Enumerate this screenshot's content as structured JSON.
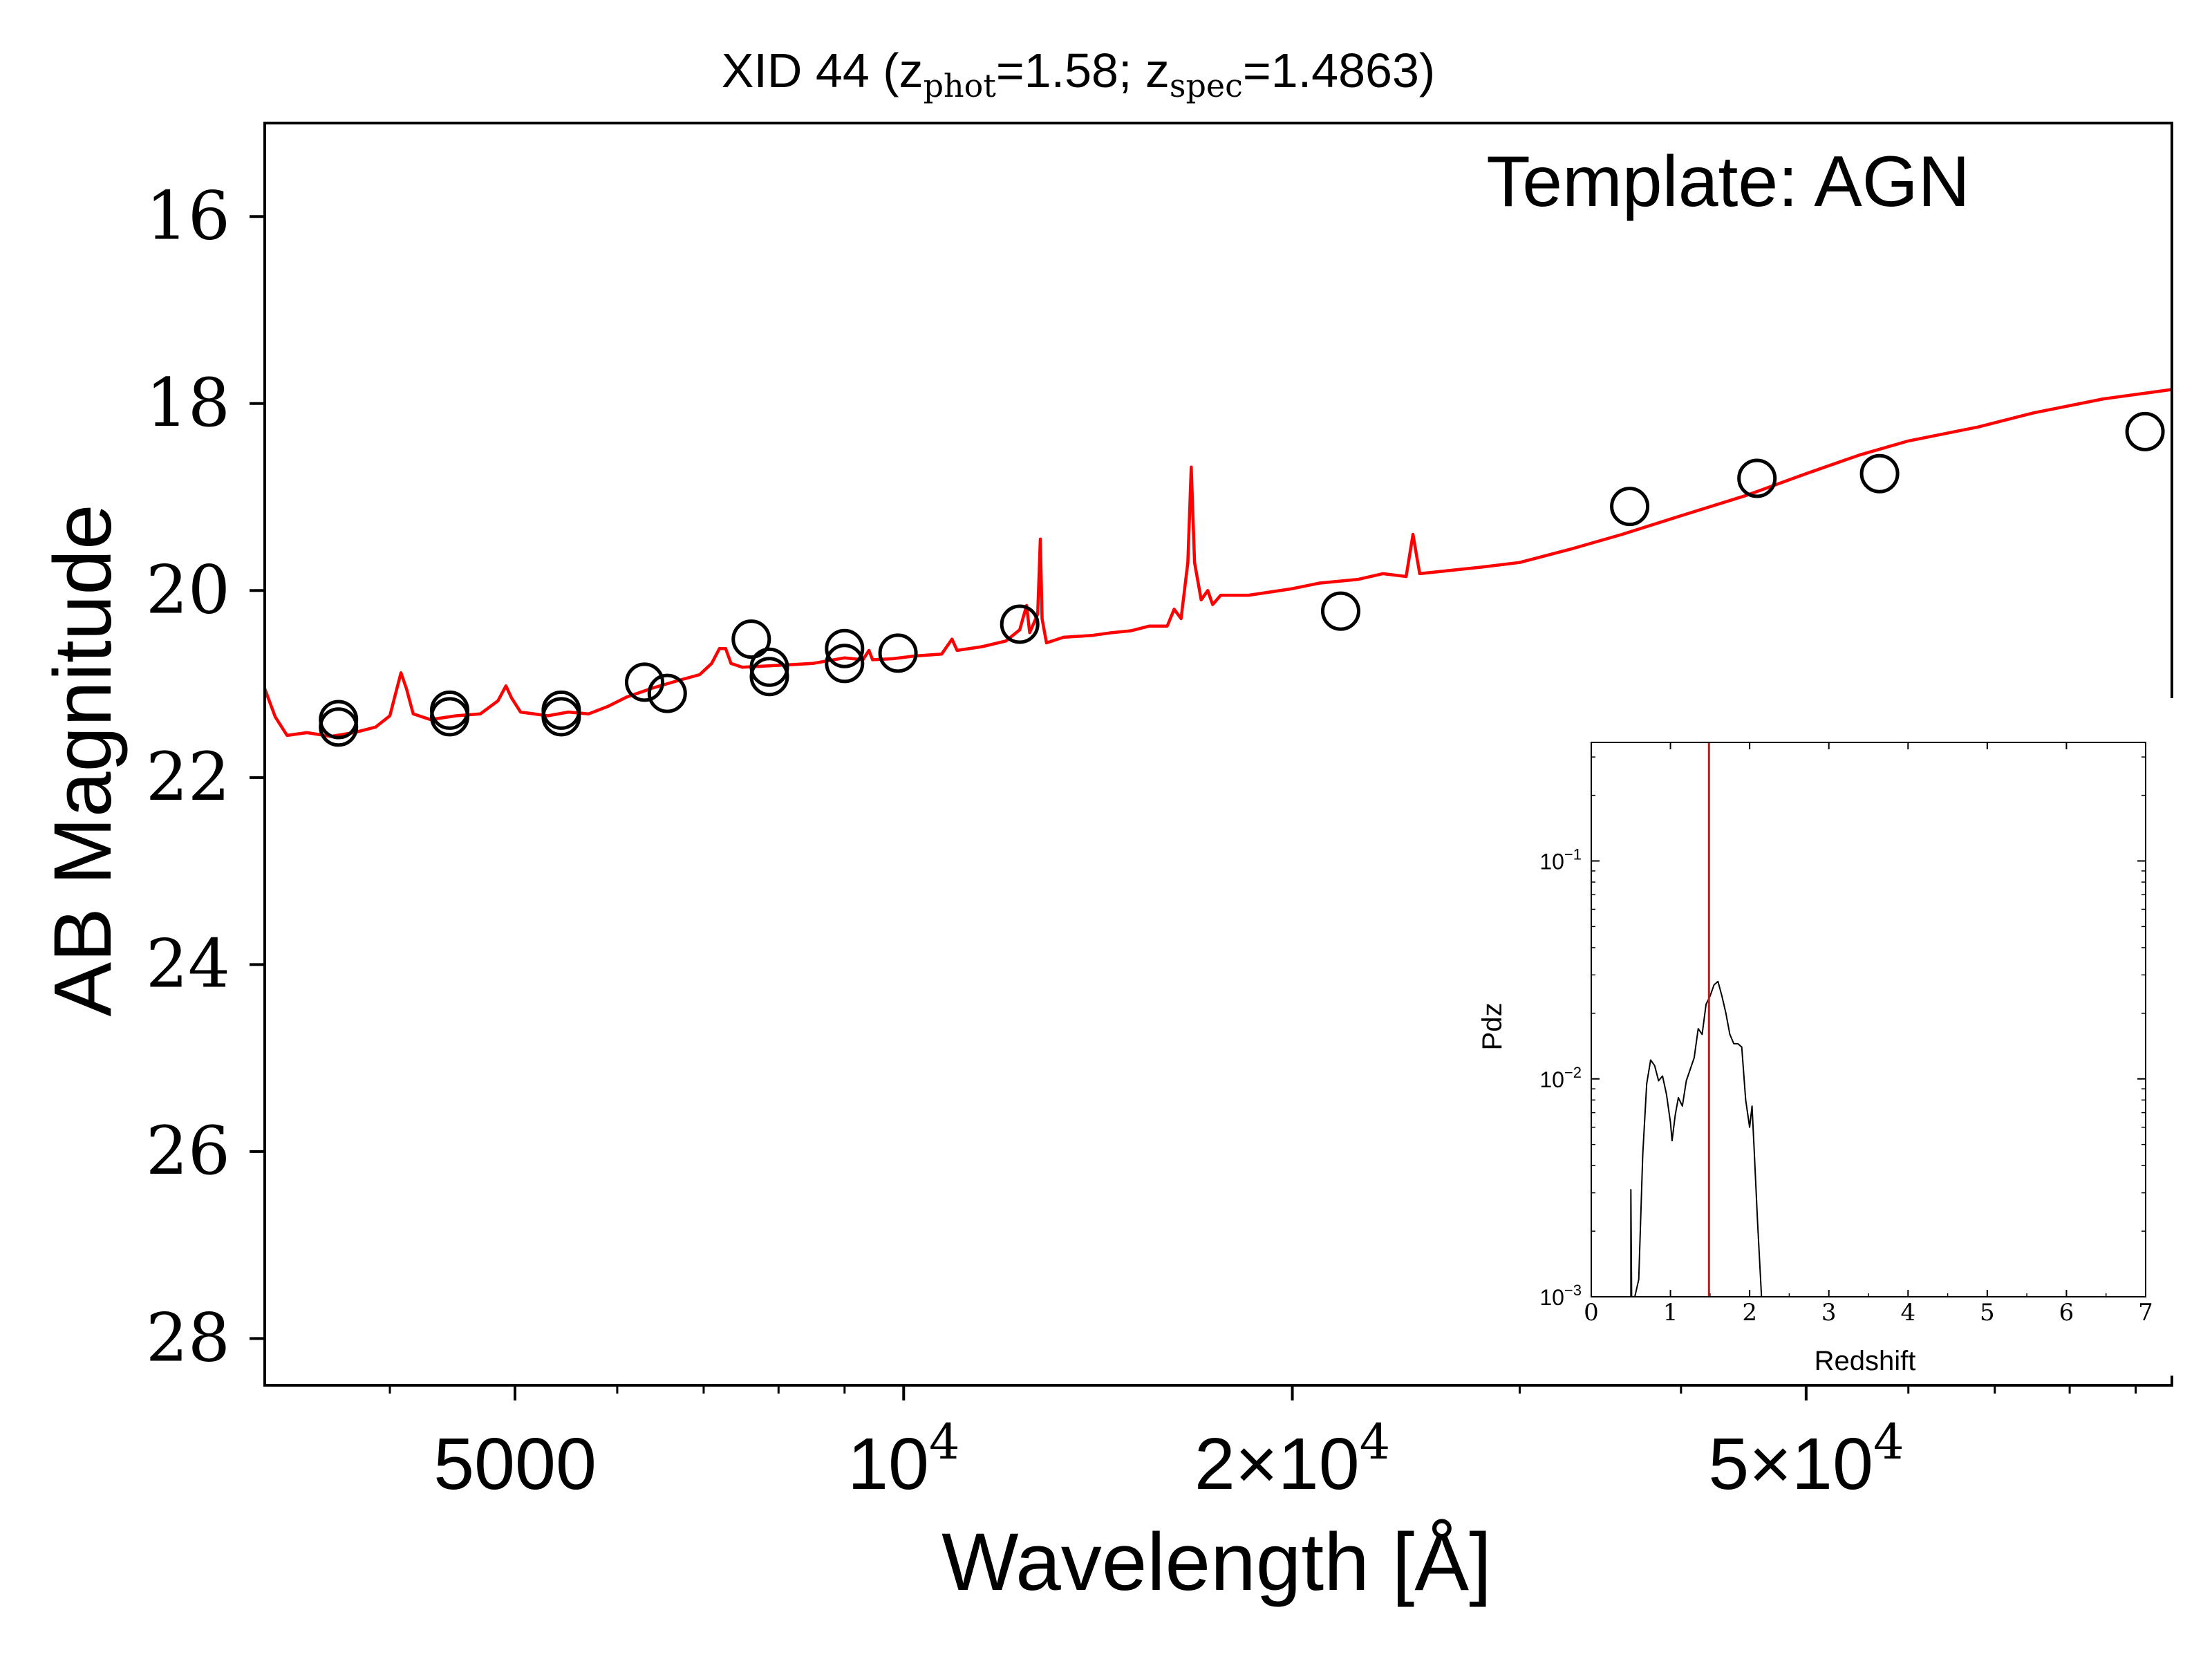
{
  "chart_data": [
    {
      "type": "scatter",
      "title": {
        "prefix": "XID 44 (z",
        "sub1": "phot",
        "mid": "=1.58; z",
        "sub2": "spec",
        "suffix": "=1.4863)"
      },
      "annotation": "Template: AGN",
      "xlabel": "Wavelength [Å]",
      "ylabel": "AB Magnitude",
      "xscale": "log",
      "xlim": [
        3200,
        96000
      ],
      "ylim": [
        28.5,
        15
      ],
      "y_inverted": true,
      "xticks": [
        {
          "value": 5000,
          "label": "5000"
        },
        {
          "value": 10000,
          "label": "10",
          "exp": "4"
        },
        {
          "value": 20000,
          "label": "2×10",
          "exp": "4"
        },
        {
          "value": 50000,
          "label": "5×10",
          "exp": "4"
        }
      ],
      "yticks": [
        {
          "value": 16,
          "label": "16"
        },
        {
          "value": 18,
          "label": "18"
        },
        {
          "value": 20,
          "label": "20"
        },
        {
          "value": 22,
          "label": "22"
        },
        {
          "value": 24,
          "label": "24"
        },
        {
          "value": 26,
          "label": "26"
        },
        {
          "value": 28,
          "label": "28"
        }
      ],
      "grid": false,
      "series": [
        {
          "kind": "photometry",
          "marker": "open-circle",
          "color": "#000000",
          "points": [
            [
              3650,
              21.38
            ],
            [
              3650,
              21.46
            ],
            [
              4450,
              21.28
            ],
            [
              4450,
              21.35
            ],
            [
              5430,
              21.28
            ],
            [
              5430,
              21.35
            ],
            [
              6300,
              20.98
            ],
            [
              6560,
              21.1
            ],
            [
              7620,
              20.52
            ],
            [
              7870,
              20.82
            ],
            [
              7870,
              20.92
            ],
            [
              9000,
              20.62
            ],
            [
              9000,
              20.78
            ],
            [
              9900,
              20.67
            ],
            [
              12300,
              20.36
            ],
            [
              21800,
              20.22
            ],
            [
              36500,
              19.1
            ],
            [
              45800,
              18.8
            ],
            [
              57000,
              18.75
            ],
            [
              91500,
              18.3
            ]
          ]
        },
        {
          "kind": "template",
          "color": "#ff0000",
          "points": [
            [
              3200,
              21.05
            ],
            [
              3260,
              21.35
            ],
            [
              3330,
              21.55
            ],
            [
              3450,
              21.52
            ],
            [
              3600,
              21.56
            ],
            [
              3750,
              21.52
            ],
            [
              3900,
              21.46
            ],
            [
              4000,
              21.34
            ],
            [
              4050,
              21.05
            ],
            [
              4080,
              20.88
            ],
            [
              4120,
              21.05
            ],
            [
              4170,
              21.32
            ],
            [
              4300,
              21.38
            ],
            [
              4500,
              21.34
            ],
            [
              4700,
              21.32
            ],
            [
              4850,
              21.18
            ],
            [
              4920,
              21.02
            ],
            [
              4970,
              21.15
            ],
            [
              5050,
              21.3
            ],
            [
              5300,
              21.34
            ],
            [
              5500,
              21.3
            ],
            [
              5700,
              21.32
            ],
            [
              5900,
              21.24
            ],
            [
              6100,
              21.14
            ],
            [
              6400,
              21.04
            ],
            [
              6700,
              20.96
            ],
            [
              6950,
              20.9
            ],
            [
              7100,
              20.78
            ],
            [
              7200,
              20.62
            ],
            [
              7280,
              20.62
            ],
            [
              7350,
              20.78
            ],
            [
              7500,
              20.82
            ],
            [
              8000,
              20.8
            ],
            [
              8500,
              20.78
            ],
            [
              9000,
              20.72
            ],
            [
              9300,
              20.74
            ],
            [
              9400,
              20.64
            ],
            [
              9460,
              20.74
            ],
            [
              9800,
              20.73
            ],
            [
              10200,
              20.7
            ],
            [
              10700,
              20.68
            ],
            [
              10900,
              20.52
            ],
            [
              11000,
              20.64
            ],
            [
              11500,
              20.6
            ],
            [
              12000,
              20.54
            ],
            [
              12300,
              20.42
            ],
            [
              12450,
              20.16
            ],
            [
              12520,
              20.45
            ],
            [
              12620,
              20.34
            ],
            [
              12700,
              20.25
            ],
            [
              12760,
              19.45
            ],
            [
              12800,
              20.3
            ],
            [
              12900,
              20.56
            ],
            [
              13300,
              20.5
            ],
            [
              14000,
              20.48
            ],
            [
              14500,
              20.45
            ],
            [
              15000,
              20.43
            ],
            [
              15500,
              20.38
            ],
            [
              16000,
              20.38
            ],
            [
              16200,
              20.2
            ],
            [
              16400,
              20.3
            ],
            [
              16600,
              19.7
            ],
            [
              16700,
              18.68
            ],
            [
              16800,
              19.7
            ],
            [
              17000,
              20.1
            ],
            [
              17200,
              20.0
            ],
            [
              17350,
              20.15
            ],
            [
              17600,
              20.05
            ],
            [
              18500,
              20.05
            ],
            [
              20000,
              19.98
            ],
            [
              21000,
              19.92
            ],
            [
              22500,
              19.88
            ],
            [
              23500,
              19.82
            ],
            [
              24500,
              19.85
            ],
            [
              24800,
              19.4
            ],
            [
              25100,
              19.82
            ],
            [
              28000,
              19.75
            ],
            [
              30000,
              19.7
            ],
            [
              33000,
              19.55
            ],
            [
              36000,
              19.4
            ],
            [
              40000,
              19.2
            ],
            [
              45000,
              18.98
            ],
            [
              50000,
              18.75
            ],
            [
              55000,
              18.55
            ],
            [
              60000,
              18.4
            ],
            [
              68000,
              18.25
            ],
            [
              75000,
              18.1
            ],
            [
              85000,
              17.95
            ],
            [
              96000,
              17.85
            ]
          ]
        }
      ]
    },
    {
      "type": "line",
      "xlabel": "Redshift",
      "ylabel": "Pdz",
      "xlim": [
        0,
        7
      ],
      "ylim": [
        0.001,
        0.35
      ],
      "yscale": "log",
      "xticks": [
        "0",
        "1",
        "2",
        "3",
        "4",
        "5",
        "6",
        "7"
      ],
      "yticks": [
        {
          "value": 0.1,
          "base": "10",
          "exp": "−1"
        },
        {
          "value": 0.01,
          "base": "10",
          "exp": "−2"
        },
        {
          "value": 0.001,
          "base": "10",
          "exp": "−3"
        }
      ],
      "vline": {
        "x": 1.4863,
        "color": "#ff0000"
      },
      "series": [
        {
          "color": "#000000",
          "points": [
            [
              0.5,
              0.001
            ],
            [
              0.5,
              0.0031
            ],
            [
              0.51,
              0.001
            ],
            [
              0.55,
              0.001
            ],
            [
              0.6,
              0.0012
            ],
            [
              0.65,
              0.0045
            ],
            [
              0.7,
              0.0095
            ],
            [
              0.75,
              0.0122
            ],
            [
              0.8,
              0.0115
            ],
            [
              0.85,
              0.0098
            ],
            [
              0.9,
              0.0103
            ],
            [
              0.95,
              0.0085
            ],
            [
              1.0,
              0.0063
            ],
            [
              1.02,
              0.0052
            ],
            [
              1.06,
              0.0068
            ],
            [
              1.1,
              0.0082
            ],
            [
              1.15,
              0.0075
            ],
            [
              1.2,
              0.0098
            ],
            [
              1.3,
              0.0125
            ],
            [
              1.35,
              0.017
            ],
            [
              1.4,
              0.016
            ],
            [
              1.45,
              0.022
            ],
            [
              1.5,
              0.024
            ],
            [
              1.55,
              0.027
            ],
            [
              1.6,
              0.028
            ],
            [
              1.65,
              0.024
            ],
            [
              1.7,
              0.02
            ],
            [
              1.75,
              0.016
            ],
            [
              1.8,
              0.0145
            ],
            [
              1.85,
              0.0145
            ],
            [
              1.9,
              0.014
            ],
            [
              1.95,
              0.008
            ],
            [
              2.0,
              0.006
            ],
            [
              2.03,
              0.0075
            ],
            [
              2.06,
              0.0045
            ],
            [
              2.1,
              0.0022
            ],
            [
              2.15,
              0.001
            ]
          ]
        }
      ]
    }
  ]
}
